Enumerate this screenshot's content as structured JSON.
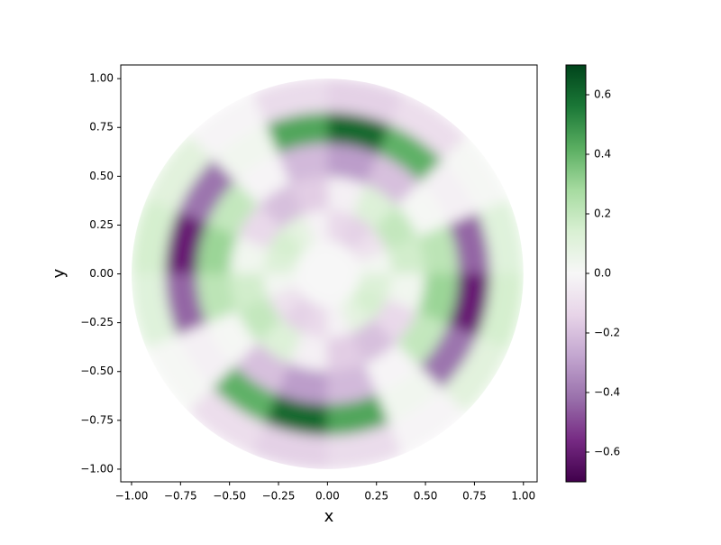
{
  "chart_data": {
    "type": "heatmap",
    "xlabel": "x",
    "ylabel": "y",
    "r_edges": [
      0,
      0.17,
      0.33,
      0.5,
      0.67,
      0.83,
      1.0
    ],
    "theta_edges": [
      0,
      22.5,
      45,
      67.5,
      90,
      112.5,
      135,
      157.5,
      180,
      202.5,
      225,
      247.5,
      270,
      292.5,
      315,
      337.5,
      360
    ],
    "values": [
      [
        0,
        0,
        0,
        0,
        0,
        0,
        0,
        0,
        0,
        0,
        0,
        0,
        0,
        0,
        0,
        0
      ],
      [
        0.02,
        -0.09,
        -0.15,
        -0.12,
        -0.02,
        0.09,
        0.15,
        0.12,
        0.02,
        -0.09,
        -0.15,
        -0.12,
        -0.02,
        0.09,
        0.15,
        0.12
      ],
      [
        0.16,
        0.2,
        0.12,
        -0.03,
        -0.16,
        -0.2,
        -0.12,
        0.03,
        0.16,
        0.2,
        0.12,
        -0.03,
        -0.16,
        -0.2,
        -0.12,
        0.03
      ],
      [
        0.22,
        0.01,
        -0.2,
        -0.3,
        -0.22,
        -0.01,
        0.2,
        0.3,
        0.22,
        0.01,
        -0.2,
        -0.3,
        -0.22,
        -0.01,
        0.2,
        0.3
      ],
      [
        -0.44,
        -0.03,
        0.41,
        0.6,
        0.44,
        0.03,
        -0.41,
        -0.6,
        -0.44,
        -0.03,
        0.41,
        0.6,
        0.44,
        0.03,
        -0.41,
        -0.6
      ],
      [
        0.11,
        0.01,
        -0.1,
        -0.15,
        -0.11,
        -0.01,
        0.1,
        0.15,
        0.11,
        0.01,
        -0.1,
        -0.15,
        -0.11,
        -0.01,
        0.1,
        0.15
      ]
    ],
    "colormap": "PRGn",
    "clim": [
      -0.7,
      0.7
    ],
    "xlim": [
      -1.055,
      1.07
    ],
    "ylim": [
      -1.065,
      1.07
    ],
    "xticks": [
      {
        "value": -1,
        "label": "−1.00"
      },
      {
        "value": -0.75,
        "label": "−0.75"
      },
      {
        "value": -0.5,
        "label": "−0.50"
      },
      {
        "value": -0.25,
        "label": "−0.25"
      },
      {
        "value": 0,
        "label": "0.00"
      },
      {
        "value": 0.25,
        "label": "0.25"
      },
      {
        "value": 0.5,
        "label": "0.50"
      },
      {
        "value": 0.75,
        "label": "0.75"
      },
      {
        "value": 1,
        "label": "1.00"
      }
    ],
    "yticks": [
      {
        "value": -1,
        "label": "−1.00"
      },
      {
        "value": -0.75,
        "label": "−0.75"
      },
      {
        "value": -0.5,
        "label": "−0.50"
      },
      {
        "value": -0.25,
        "label": "−0.25"
      },
      {
        "value": 0,
        "label": "0.00"
      },
      {
        "value": 0.25,
        "label": "0.25"
      },
      {
        "value": 0.5,
        "label": "0.50"
      },
      {
        "value": 0.75,
        "label": "0.75"
      },
      {
        "value": 1,
        "label": "1.00"
      }
    ],
    "colorbar_ticks": [
      {
        "value": -0.6,
        "label": "−0.6"
      },
      {
        "value": -0.4,
        "label": "−0.4"
      },
      {
        "value": -0.2,
        "label": "−0.2"
      },
      {
        "value": 0,
        "label": "0.0"
      },
      0.2,
      0.4,
      0.6
    ]
  }
}
